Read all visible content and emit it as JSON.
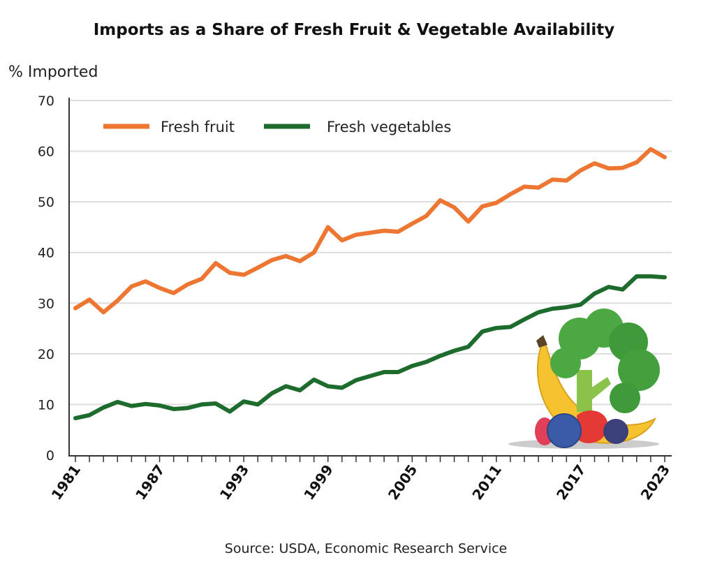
{
  "chart_data": {
    "type": "line",
    "title": "Imports as a Share of Fresh Fruit & Vegetable Availability",
    "ylabel": "% Imported",
    "xlabel": "",
    "source": "Source: USDA, Economic Research Service",
    "ylim": [
      0,
      70
    ],
    "yticks": [
      0,
      10,
      20,
      30,
      40,
      50,
      60,
      70
    ],
    "xlim": [
      1981,
      2023
    ],
    "xticks": [
      1981,
      1987,
      1993,
      1999,
      2005,
      2011,
      2017,
      2023
    ],
    "grid": true,
    "legend_position": "top-left",
    "x": [
      1981,
      1982,
      1983,
      1984,
      1985,
      1986,
      1987,
      1988,
      1989,
      1990,
      1991,
      1992,
      1993,
      1994,
      1995,
      1996,
      1997,
      1998,
      1999,
      2000,
      2001,
      2002,
      2003,
      2004,
      2005,
      2006,
      2007,
      2008,
      2009,
      2010,
      2011,
      2012,
      2013,
      2014,
      2015,
      2016,
      2017,
      2018,
      2019,
      2020,
      2021,
      2022,
      2023
    ],
    "series": [
      {
        "name": "Fresh fruit",
        "color": "#ED7633",
        "values": [
          29.0,
          30.7,
          28.2,
          30.5,
          33.3,
          34.3,
          33.0,
          32.0,
          33.7,
          34.8,
          37.9,
          36.0,
          35.6,
          37.0,
          38.5,
          39.3,
          38.3,
          40.0,
          45.0,
          42.4,
          43.5,
          43.9,
          44.3,
          44.1,
          45.7,
          47.2,
          50.3,
          48.9,
          46.1,
          49.1,
          49.8,
          51.5,
          53.0,
          52.8,
          54.4,
          54.2,
          56.2,
          57.6,
          56.6,
          56.7,
          57.8,
          60.4,
          58.8
        ]
      },
      {
        "name": "Fresh vegetables",
        "color": "#1E6B2E",
        "values": [
          7.3,
          7.9,
          9.4,
          10.5,
          9.7,
          10.1,
          9.8,
          9.1,
          9.3,
          10.0,
          10.2,
          8.6,
          10.6,
          10.0,
          12.2,
          13.6,
          12.8,
          14.9,
          13.6,
          13.3,
          14.8,
          15.6,
          16.4,
          16.4,
          17.6,
          18.4,
          19.6,
          20.6,
          21.4,
          24.4,
          25.1,
          25.3,
          26.8,
          28.2,
          28.9,
          29.2,
          29.7,
          31.9,
          33.2,
          32.7,
          35.3,
          35.3,
          35.1
        ]
      }
    ]
  }
}
